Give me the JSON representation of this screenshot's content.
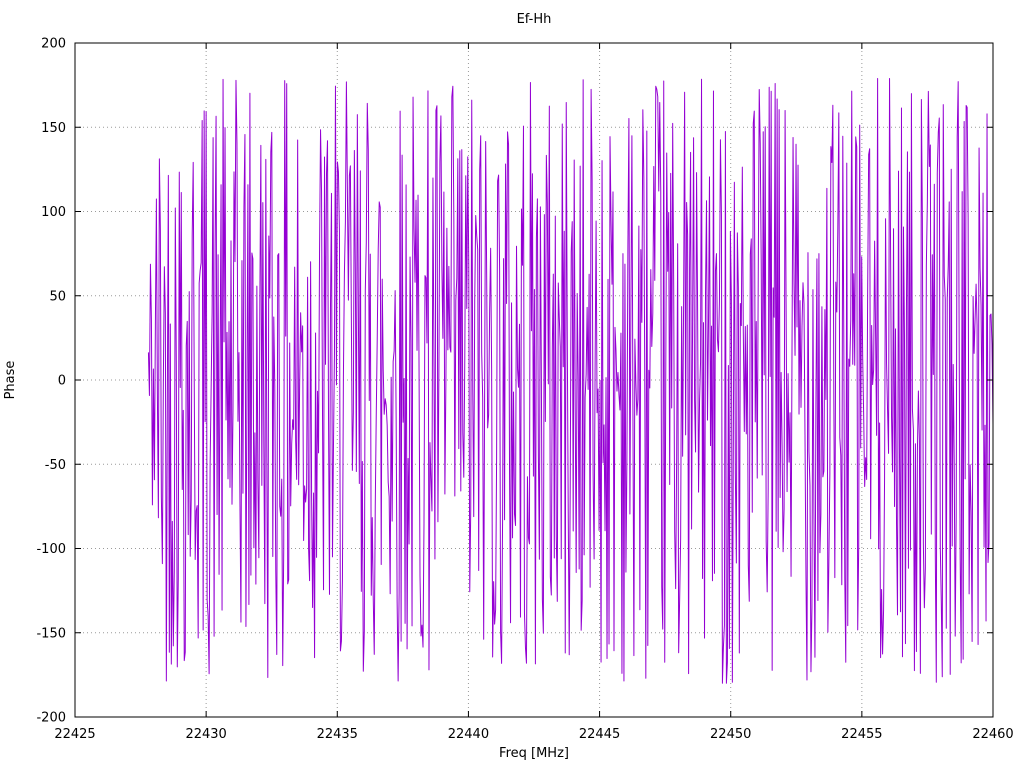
{
  "chart_data": {
    "type": "line",
    "title": "Ef-Hh",
    "xlabel": "Freq [MHz]",
    "ylabel": "Phase",
    "xlim": [
      22425,
      22460
    ],
    "ylim": [
      -200,
      200
    ],
    "x_ticks": [
      22425,
      22430,
      22435,
      22440,
      22445,
      22450,
      22455,
      22460
    ],
    "y_ticks": [
      -200,
      -150,
      -100,
      -50,
      0,
      50,
      100,
      150,
      200
    ],
    "grid": true,
    "grid_style": "dotted-gray",
    "legend_position": "none",
    "background_color": "#ffffff",
    "border_color": "#000000",
    "series": [
      {
        "name": "Ef-Hh phase",
        "color": "#9400d3",
        "style": "line",
        "x_start": 22427.8,
        "x_end": 22460.0,
        "n_points": 850,
        "y_range": [
          -180,
          180
        ],
        "y_distribution": "uniform-wrapped-phase",
        "seed": 42,
        "description": "Wrapped interferometric fringe phase (degrees) versus frequency; appears as dense pseudo-random noise spanning roughly -180 to +180 degrees from about 22427.8 MHz to 22460 MHz, with a brief lower-amplitude onset at the left edge"
      }
    ]
  }
}
